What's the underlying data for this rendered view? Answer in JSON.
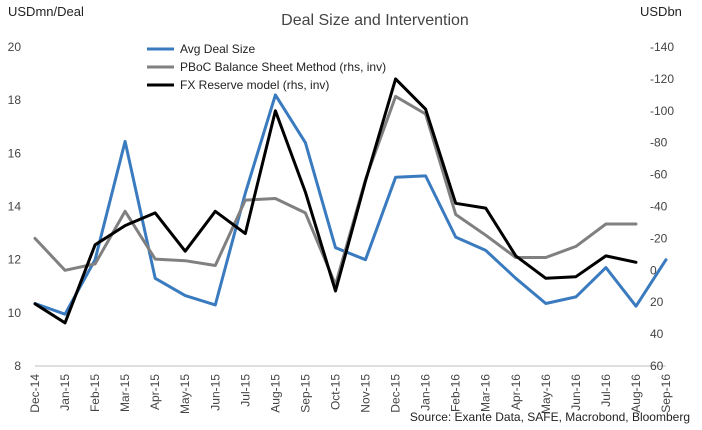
{
  "chart_data": {
    "type": "line",
    "title": "Deal Size and Intervention",
    "ylabel_left": "USDmn/Deal",
    "ylabel_right": "USDbn",
    "source": "Source: Exante Data, SAFE, Macrobond, Bloomberg",
    "categories": [
      "Dec-14",
      "Jan-15",
      "Feb-15",
      "Mar-15",
      "Apr-15",
      "May-15",
      "Jun-15",
      "Jul-15",
      "Aug-15",
      "Sep-15",
      "Oct-15",
      "Nov-15",
      "Dec-15",
      "Jan-16",
      "Feb-16",
      "Mar-16",
      "Apr-16",
      "May-16",
      "Jun-16",
      "Jul-16",
      "Aug-16",
      "Sep-16"
    ],
    "ylim_left": [
      8,
      20
    ],
    "yticks_left": [
      "8",
      "10",
      "12",
      "14",
      "16",
      "18",
      "20"
    ],
    "ylim_right": [
      60,
      -140
    ],
    "yticks_right": [
      "60",
      "40",
      "20",
      "0",
      "-20",
      "-40",
      "-60",
      "-80",
      "-100",
      "-120",
      "-140"
    ],
    "right_axis_inverted": true,
    "legend_position": "top-left",
    "series": [
      {
        "name": "Avg Deal Size",
        "axis": "left",
        "color": "#3a7bbf",
        "values": [
          10.35,
          9.95,
          12.0,
          16.45,
          11.3,
          10.65,
          10.3,
          14.5,
          18.2,
          16.4,
          12.45,
          12.0,
          15.1,
          15.15,
          12.85,
          12.35,
          11.3,
          10.35,
          10.6,
          11.7,
          10.25,
          12.0
        ]
      },
      {
        "name": "PBoC Balance Sheet Method (rhs, inv)",
        "axis": "right",
        "color": "#808080",
        "values": [
          -20,
          0,
          -4,
          -37,
          -7,
          -6,
          -3,
          -44,
          -45,
          -36,
          9,
          -57,
          -109,
          -98,
          -35,
          -22,
          -8,
          -8,
          -15,
          -29,
          -29,
          null
        ]
      },
      {
        "name": "FX Reserve model (rhs, inv)",
        "axis": "right",
        "color": "#000000",
        "values": [
          21,
          33,
          -16,
          -28,
          -36,
          -12,
          -37,
          -23,
          -100,
          -49,
          13,
          -56,
          -120,
          -101,
          -42,
          -39,
          -9,
          5,
          4,
          -9,
          -5,
          null
        ]
      }
    ]
  }
}
